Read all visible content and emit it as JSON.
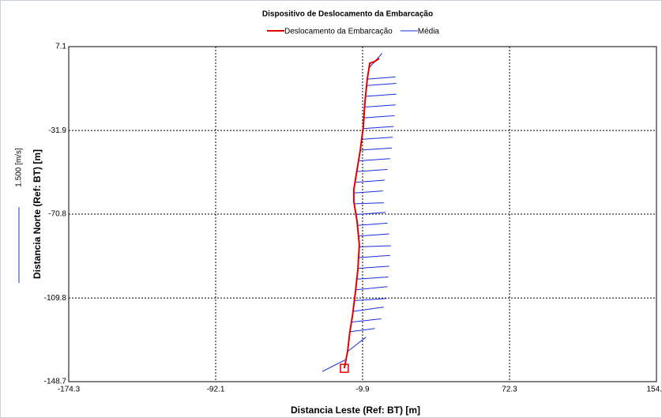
{
  "chart_data": {
    "type": "line",
    "title": "Dispositivo de Deslocamento da Embarcação",
    "x_label": "Distancia Leste (Ref: BT) [m]",
    "y_label": "Distancia Norte (Ref: BT) [m]",
    "scale_label": "1.500 [m/s]",
    "xlim": [
      -174.3,
      154.5
    ],
    "xticks": [
      -174.3,
      -92.1,
      -9.9,
      72.3,
      154.5
    ],
    "ylim": [
      -148.7,
      7.1
    ],
    "yticks": [
      7.1,
      -31.9,
      -70.8,
      -109.8,
      -148.7
    ],
    "grid": true,
    "series": [
      {
        "name": "Deslocamento da Embarcação",
        "color": "#e00000",
        "x": [
          -20.1,
          -19.2,
          -18.3,
          -17.0,
          -15.6,
          -13.9,
          -12.5,
          -11.7,
          -13.0,
          -14.8,
          -14.8,
          -13.0,
          -11.2,
          -9.5,
          -8.6,
          -7.3,
          -5.9,
          -3.3,
          -0.6
        ],
        "y": [
          -142.5,
          -138.4,
          -134.7,
          -125.5,
          -118.2,
          -107.2,
          -96.2,
          -85.1,
          -74.1,
          -64.9,
          -59.4,
          -50.2,
          -41.0,
          -30.0,
          -19.0,
          -8.0,
          -0.6,
          0.1,
          1.6
        ]
      },
      {
        "name": "Média",
        "color": "#1a2fe0",
        "x": [
          -19.2,
          -32.5,
          null,
          -18.3,
          -8.0,
          null,
          -17.0,
          -3.0,
          null,
          -16.0,
          0.5,
          null,
          -15.0,
          2.0,
          null,
          -14.2,
          3.5,
          null,
          -13.6,
          4.0,
          null,
          -13.0,
          4.5,
          null,
          -12.5,
          5.0,
          null,
          -12.2,
          5.5,
          null,
          -11.8,
          6.0,
          null,
          -12.0,
          5.0,
          null,
          -12.8,
          4.0,
          null,
          -13.6,
          3.0,
          null,
          -14.5,
          2.0,
          null,
          -14.8,
          1.5,
          null,
          -14.0,
          2.5,
          null,
          -12.8,
          4.0,
          null,
          -11.6,
          5.5,
          null,
          -10.8,
          6.5,
          null,
          -10.0,
          7.0,
          null,
          -9.5,
          7.5,
          null,
          -9.0,
          8.0,
          null,
          -8.6,
          8.5,
          null,
          -8.0,
          9.0,
          null,
          -7.6,
          9.0,
          null,
          -7.3,
          8.5,
          null,
          -6.5,
          1.0
        ],
        "y": [
          -138.4,
          -144.0,
          null,
          -134.7,
          -128.0,
          null,
          -125.5,
          -124.0,
          null,
          -121.0,
          -119.5,
          null,
          -116.0,
          -114.0,
          null,
          -111.0,
          -110.0,
          null,
          -106.0,
          -104.5,
          null,
          -101.0,
          -100.0,
          null,
          -96.0,
          -95.0,
          null,
          -91.0,
          -90.0,
          null,
          -86.0,
          -85.5,
          null,
          -81.0,
          -80.0,
          null,
          -76.0,
          -75.0,
          null,
          -71.0,
          -70.0,
          null,
          -66.0,
          -65.5,
          null,
          -61.0,
          -60.0,
          null,
          -56.0,
          -55.0,
          null,
          -51.0,
          -50.0,
          null,
          -46.0,
          -45.0,
          null,
          -41.0,
          -40.0,
          null,
          -36.0,
          -35.0,
          null,
          -31.0,
          -30.0,
          null,
          -26.0,
          -25.0,
          null,
          -21.0,
          -20.0,
          null,
          -16.0,
          -15.0,
          null,
          -11.0,
          -10.0,
          null,
          -8.0,
          -7.0,
          null,
          -3.0,
          4.0
        ]
      }
    ]
  }
}
